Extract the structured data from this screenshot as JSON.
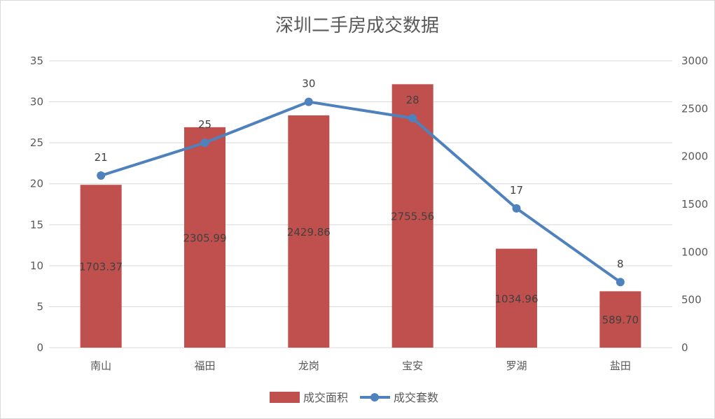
{
  "chart_data": {
    "type": "bar+line",
    "title": "深圳二手房成交数据",
    "categories": [
      "南山",
      "福田",
      "龙岗",
      "宝安",
      "罗湖",
      "盐田"
    ],
    "series": [
      {
        "name": "成交面积",
        "type": "bar",
        "axis": "right",
        "color": "#c0504d",
        "values": [
          1703.37,
          2305.99,
          2429.86,
          2755.56,
          1034.96,
          589.7
        ],
        "labels": [
          "1703.37",
          "2305.99",
          "2429.86",
          "2755.56",
          "1034.96",
          "589.70"
        ]
      },
      {
        "name": "成交套数",
        "type": "line",
        "axis": "left",
        "color": "#4f81bd",
        "values": [
          21,
          25,
          30,
          28,
          17,
          8
        ],
        "labels": [
          "21",
          "25",
          "30",
          "28",
          "17",
          "8"
        ]
      }
    ],
    "left_axis": {
      "min": 0,
      "max": 35,
      "step": 5,
      "ticks": [
        "0",
        "5",
        "10",
        "15",
        "20",
        "25",
        "30",
        "35"
      ]
    },
    "right_axis": {
      "min": 0,
      "max": 3000,
      "step": 500,
      "ticks": [
        "0",
        "500",
        "1000",
        "1500",
        "2000",
        "2500",
        "3000"
      ]
    },
    "grid": true,
    "legend": "bottom"
  }
}
